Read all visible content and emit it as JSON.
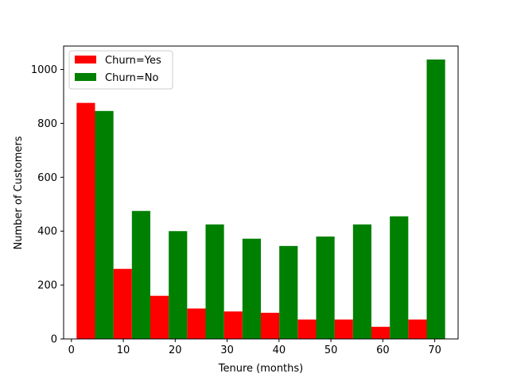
{
  "chart_data": {
    "type": "bar",
    "title": "",
    "xlabel": "Tenure (months)",
    "ylabel": "Number of Customers",
    "x_ticks": [
      0,
      10,
      20,
      30,
      40,
      50,
      60,
      70
    ],
    "y_ticks": [
      0,
      200,
      400,
      600,
      800,
      1000
    ],
    "xlim": [
      -1.5,
      74.5
    ],
    "ylim": [
      0,
      1087
    ],
    "grid": false,
    "legend_position": "top-left",
    "bin_edges": [
      1,
      8.1,
      15.2,
      22.3,
      29.4,
      36.5,
      43.6,
      50.7,
      57.8,
      64.9,
      72
    ],
    "series": [
      {
        "name": "Churn=Yes",
        "color": "#ff0000",
        "values": [
          876,
          260,
          160,
          113,
          102,
          97,
          72,
          72,
          45,
          72
        ]
      },
      {
        "name": "Churn=No",
        "color": "#008000",
        "values": [
          846,
          475,
          400,
          425,
          372,
          345,
          380,
          425,
          455,
          1037
        ]
      }
    ]
  }
}
